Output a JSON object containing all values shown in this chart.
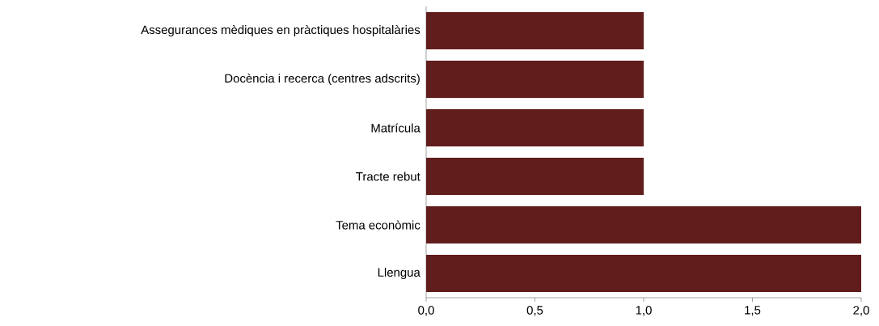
{
  "chart_data": {
    "type": "bar",
    "orientation": "horizontal",
    "categories": [
      "Assegurances mèdiques en pràctiques hospitalàries",
      "Docència i recerca (centres adscrits)",
      "Matrícula",
      "Tracte rebut",
      "Tema econòmic",
      "Llengua"
    ],
    "values": [
      1,
      1,
      1,
      1,
      2,
      2
    ],
    "color": "#611c1c",
    "xlim": [
      0,
      2
    ],
    "xticks": [
      {
        "value": 0,
        "label": "0,0"
      },
      {
        "value": 0.5,
        "label": "0,5"
      },
      {
        "value": 1,
        "label": "1,0"
      },
      {
        "value": 1.5,
        "label": "1,5"
      },
      {
        "value": 2,
        "label": "2,0"
      }
    ],
    "grid": false
  }
}
